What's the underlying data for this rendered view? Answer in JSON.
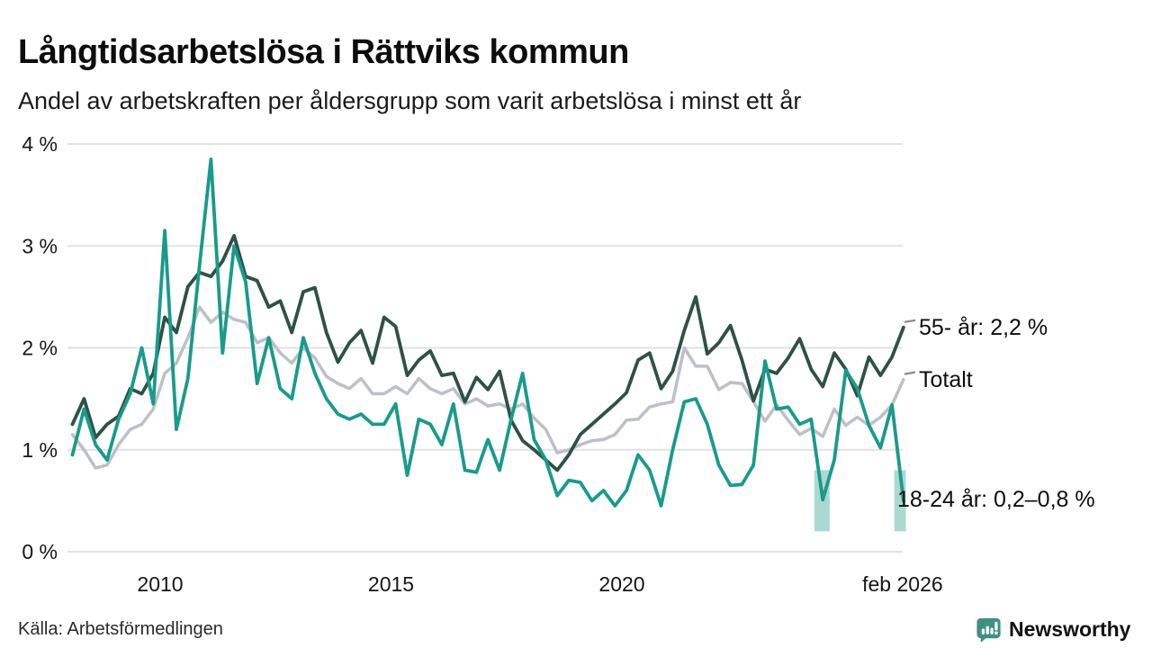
{
  "chart_data": {
    "type": "line",
    "title": "Långtidsarbetslösa i Rättviks kommun",
    "subtitle": "Andel av arbetskraften per åldersgrupp som varit arbetslösa i minst ett år",
    "source": "Källa: Arbetsförmedlingen",
    "grid": true,
    "legend_position": "right-edge-annotations",
    "ylim": [
      0,
      4
    ],
    "xlim": [
      2008.1,
      2026.15
    ],
    "y_ticks": [
      {
        "value": 4,
        "label": "4 %"
      },
      {
        "value": 3,
        "label": "3 %"
      },
      {
        "value": 2,
        "label": "2 %"
      },
      {
        "value": 1,
        "label": "1 %"
      },
      {
        "value": 0,
        "label": "0 %"
      }
    ],
    "x_ticks": [
      {
        "t": 2010,
        "label": "2010"
      },
      {
        "t": 2015,
        "label": "2015"
      },
      {
        "t": 2020,
        "label": "2020"
      },
      {
        "t": 2026.08,
        "label": "feb 2026"
      }
    ],
    "x_years": [
      2008.1,
      2008.35,
      2008.6,
      2008.85,
      2009.1,
      2009.35,
      2009.6,
      2009.85,
      2010.1,
      2010.35,
      2010.6,
      2010.85,
      2011.1,
      2011.35,
      2011.6,
      2011.85,
      2012.1,
      2012.35,
      2012.6,
      2012.85,
      2013.1,
      2013.35,
      2013.6,
      2013.85,
      2014.1,
      2014.35,
      2014.6,
      2014.85,
      2015.1,
      2015.35,
      2015.6,
      2015.85,
      2016.1,
      2016.35,
      2016.6,
      2016.85,
      2017.1,
      2017.35,
      2017.6,
      2017.85,
      2018.1,
      2018.35,
      2018.6,
      2018.85,
      2019.1,
      2019.35,
      2019.6,
      2019.85,
      2020.1,
      2020.35,
      2020.6,
      2020.85,
      2021.1,
      2021.35,
      2021.6,
      2021.85,
      2022.1,
      2022.35,
      2022.6,
      2022.85,
      2023.1,
      2023.35,
      2023.6,
      2023.85,
      2024.1,
      2024.35,
      2024.6,
      2024.85,
      2025.1,
      2025.35,
      2025.6,
      2025.85,
      2026.1
    ],
    "series": [
      {
        "name": "55- år",
        "slug": "55-plus",
        "color": "#2d5146",
        "width": 3.8,
        "values": [
          1.25,
          1.5,
          1.12,
          1.25,
          1.33,
          1.6,
          1.55,
          1.75,
          2.3,
          2.15,
          2.6,
          2.74,
          2.7,
          2.85,
          3.1,
          2.7,
          2.66,
          2.4,
          2.46,
          2.15,
          2.55,
          2.59,
          2.15,
          1.86,
          2.05,
          2.17,
          1.85,
          2.3,
          2.21,
          1.73,
          1.88,
          1.97,
          1.73,
          1.75,
          1.47,
          1.71,
          1.59,
          1.77,
          1.29,
          1.09,
          1.0,
          0.9,
          0.8,
          0.95,
          1.15,
          1.25,
          1.35,
          1.45,
          1.56,
          1.88,
          1.95,
          1.6,
          1.77,
          2.17,
          2.5,
          1.94,
          2.05,
          2.22,
          1.88,
          1.48,
          1.79,
          1.75,
          1.9,
          2.09,
          1.79,
          1.62,
          1.95,
          1.79,
          1.53,
          1.91,
          1.73,
          1.91,
          2.2
        ]
      },
      {
        "name": "Totalt",
        "slug": "totalt",
        "color": "#bdbfc9",
        "width": 3.5,
        "values": [
          1.15,
          1.0,
          0.82,
          0.85,
          1.05,
          1.2,
          1.25,
          1.4,
          1.75,
          1.85,
          2.1,
          2.4,
          2.25,
          2.35,
          2.28,
          2.25,
          2.05,
          2.1,
          1.95,
          1.85,
          2.0,
          1.9,
          1.72,
          1.65,
          1.6,
          1.7,
          1.55,
          1.55,
          1.62,
          1.55,
          1.7,
          1.6,
          1.55,
          1.6,
          1.45,
          1.5,
          1.43,
          1.45,
          1.4,
          1.45,
          1.31,
          1.2,
          0.97,
          1.0,
          1.05,
          1.09,
          1.1,
          1.15,
          1.29,
          1.3,
          1.42,
          1.45,
          1.47,
          2.0,
          1.82,
          1.82,
          1.59,
          1.66,
          1.65,
          1.47,
          1.28,
          1.44,
          1.29,
          1.15,
          1.21,
          1.13,
          1.4,
          1.24,
          1.32,
          1.24,
          1.32,
          1.44,
          1.69
        ]
      },
      {
        "name": "18-24 år",
        "slug": "18-24",
        "color": "#189b8b",
        "width": 3.8,
        "values": [
          0.95,
          1.4,
          1.05,
          0.9,
          1.3,
          1.55,
          2.0,
          1.45,
          3.15,
          1.2,
          1.7,
          2.8,
          3.85,
          1.95,
          3.0,
          2.65,
          1.65,
          2.1,
          1.6,
          1.5,
          2.1,
          1.75,
          1.5,
          1.35,
          1.3,
          1.35,
          1.25,
          1.25,
          1.45,
          0.75,
          1.3,
          1.25,
          1.05,
          1.45,
          0.8,
          0.78,
          1.1,
          0.8,
          1.3,
          1.75,
          1.1,
          0.9,
          0.55,
          0.7,
          0.68,
          0.5,
          0.6,
          0.45,
          0.6,
          0.95,
          0.8,
          0.45,
          1.0,
          1.47,
          1.5,
          1.25,
          0.85,
          0.65,
          0.66,
          0.85,
          1.87,
          1.4,
          1.42,
          1.25,
          1.3,
          0.51,
          0.9,
          1.78,
          1.6,
          1.24,
          1.02,
          1.44,
          0.5
        ]
      }
    ],
    "bands": [
      {
        "x_start": 2024.17,
        "x_end": 2024.5,
        "low": 0.2,
        "high": 0.8,
        "series": "18-24 år"
      },
      {
        "x_start": 2025.9,
        "x_end": 2026.15,
        "low": 0.2,
        "high": 0.8,
        "series": "18-24 år"
      }
    ],
    "band_color": "#abd9d1",
    "annotations": [
      {
        "text": "55- år: 2,2 %",
        "slug": "55-plus",
        "value": 2.2,
        "dash": true
      },
      {
        "text": "Totalt",
        "slug": "totalt",
        "value": 1.69,
        "dash": true
      },
      {
        "text": "18-24 år: 0,2–0,8 %",
        "slug": "18-24",
        "value": 0.51,
        "dash": false
      }
    ],
    "colors": {
      "grid": "#e2e2e2",
      "tick_text": "#161616",
      "annotation_dash": "#8a8a8a"
    }
  },
  "footer": {
    "source": "Källa: Arbetsförmedlingen",
    "brand": "Newsworthy",
    "brand_color": "#3e9082",
    "logo_icon": "newsworthy-bar-chart-bubble-icon"
  }
}
